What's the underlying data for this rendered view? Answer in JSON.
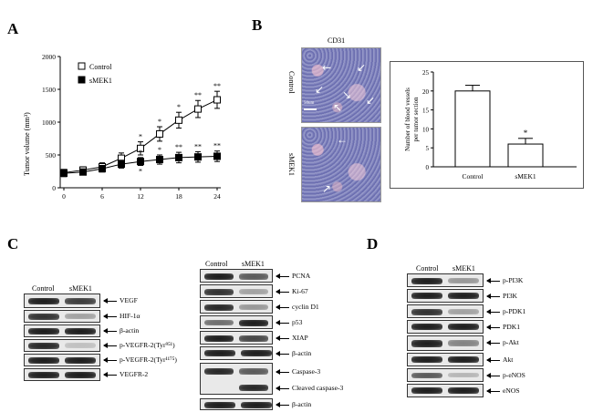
{
  "panels": {
    "A": "A",
    "B": "B",
    "C": "C",
    "D": "D"
  },
  "panelA": {
    "ylabel": "Tumor volume (mm³)",
    "legend": [
      "Control",
      "sMEK1"
    ],
    "yticks": [
      "0",
      "500",
      "1000",
      "1500",
      "2000"
    ],
    "xticks": [
      "0",
      "6",
      "12",
      "18",
      "24"
    ],
    "sig_control": [
      "*",
      "*",
      "*",
      "**",
      "**"
    ],
    "sig_smek1": [
      "*",
      "*",
      "**",
      "**",
      "**"
    ]
  },
  "panelB": {
    "title": "CD31",
    "img_labels": [
      "Control",
      "sMEK1"
    ],
    "scale": "50um",
    "bar_ylabel": "Number of blood vessels per tumor section",
    "bar_yticks": [
      "0",
      "5",
      "10",
      "15",
      "20",
      "25"
    ],
    "categories": [
      "Control",
      "sMEK1"
    ],
    "sig": "*"
  },
  "chart_data": [
    {
      "type": "line",
      "ylabel": "Tumor volume (mm³)",
      "x": [
        0,
        3,
        6,
        9,
        12,
        15,
        18,
        21,
        24
      ],
      "ylim": [
        0,
        2000
      ],
      "xlim": [
        0,
        24
      ],
      "series": [
        {
          "name": "Control",
          "values": [
            230,
            270,
            320,
            450,
            600,
            820,
            1030,
            1200,
            1340
          ],
          "errors": [
            50,
            50,
            60,
            80,
            100,
            110,
            120,
            130,
            130
          ]
        },
        {
          "name": "sMEK1",
          "values": [
            220,
            240,
            290,
            360,
            400,
            430,
            460,
            470,
            480
          ],
          "errors": [
            50,
            40,
            50,
            60,
            60,
            70,
            80,
            80,
            80
          ]
        }
      ]
    },
    {
      "type": "bar",
      "ylabel": "Number of blood vessels per tumor section",
      "categories": [
        "Control",
        "sMEK1"
      ],
      "values": [
        20,
        6
      ],
      "errors": [
        1.5,
        1.5
      ],
      "ylim": [
        0,
        25
      ]
    }
  ],
  "panelC": {
    "left": {
      "headers": [
        "Control",
        "sMEK1"
      ],
      "labels": [
        "VEGF",
        "HIF-1α",
        "β-actin",
        "p-VEGFR-2(Tyr⁹⁵¹)",
        "p-VEGFR-2(Tyr¹¹⁷⁵)",
        "VEGFR-2"
      ]
    },
    "right": {
      "headers": [
        "Control",
        "sMEK1"
      ],
      "labels": [
        "PCNA",
        "Ki-67",
        "cyclin D1",
        "p53",
        "XIAP",
        "β-actin",
        "Caspase-3",
        "Cleaved caspase-3",
        "β-actin"
      ]
    }
  },
  "panelD": {
    "headers": [
      "Control",
      "sMEK1"
    ],
    "labels": [
      "p-PI3K",
      "PI3K",
      "p-PDK1",
      "PDK1",
      "p-Akt",
      "Akt",
      "p-eNOS",
      "eNOS"
    ]
  }
}
